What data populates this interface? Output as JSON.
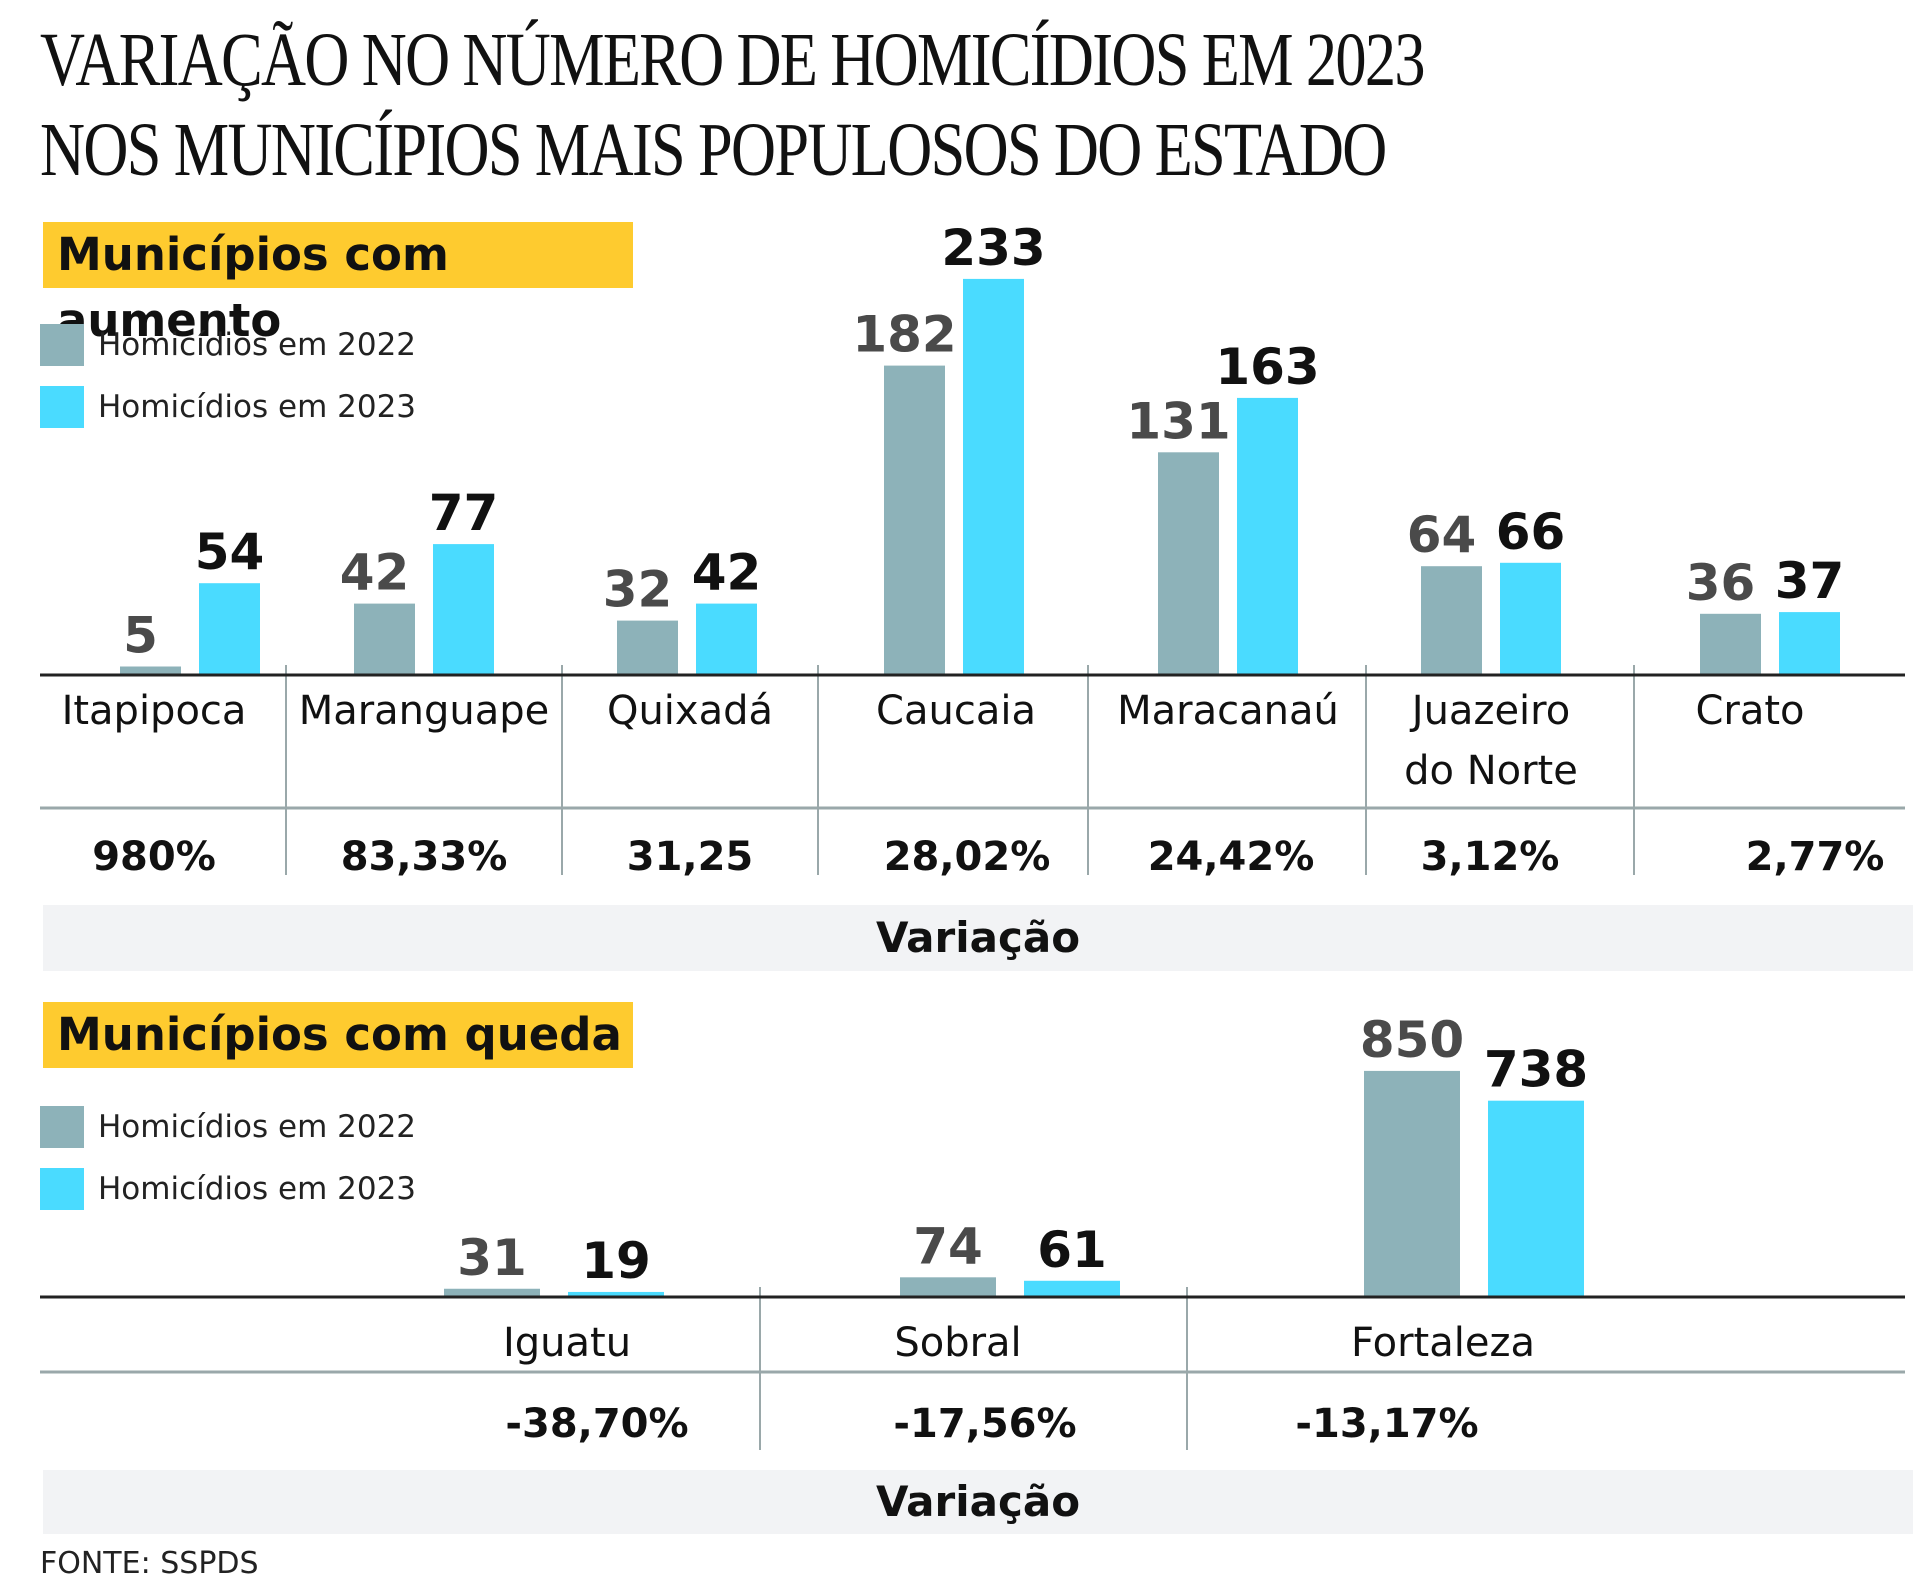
{
  "title": {
    "line1": "VARIAÇÃO NO NÚMERO DE HOMICÍDIOS EM 2023",
    "line2": "NOS MUNICÍPIOS MAIS POPULOSOS DO ESTADO"
  },
  "colors": {
    "series_2022": "#8db2b9",
    "series_2023": "#4adbff",
    "tag_background": "#fecb2f",
    "band_background": "#f2f3f5",
    "label_2022": "#4a4a4a",
    "label_2023": "#111111",
    "divider": "#9aa8aa"
  },
  "source": "FONTE: SSPDS",
  "chart_data": [
    {
      "type": "bar",
      "title": "Municípios com aumento",
      "legend": [
        "Homicídios em 2022",
        "Homicídios em 2023"
      ],
      "legend_position": "top-left",
      "categories": [
        "Itapipoca",
        "Maranguape",
        "Quixadá",
        "Caucaia",
        "Maracanaú",
        "Juazeiro do Norte",
        "Crato"
      ],
      "category_lines": [
        [
          "Itapipoca"
        ],
        [
          "Maranguape"
        ],
        [
          "Quixadá"
        ],
        [
          "Caucaia"
        ],
        [
          "Maracanaú"
        ],
        [
          "Juazeiro",
          "do Norte"
        ],
        [
          "Crato"
        ]
      ],
      "series": [
        {
          "name": "Homicídios em 2022",
          "values": [
            5,
            42,
            32,
            182,
            131,
            64,
            36
          ]
        },
        {
          "name": "Homicídios em 2023",
          "values": [
            54,
            77,
            42,
            233,
            163,
            66,
            37
          ]
        }
      ],
      "variation": [
        "980%",
        "83,33%",
        "31,25",
        "28,02%",
        "24,42%",
        "3,12%",
        "2,77%"
      ],
      "variation_label": "Variação",
      "grid": false
    },
    {
      "type": "bar",
      "title": "Municípios com queda",
      "legend": [
        "Homicídios em 2022",
        "Homicídios em 2023"
      ],
      "legend_position": "top-left",
      "categories": [
        "Iguatu",
        "Sobral",
        "Fortaleza"
      ],
      "category_lines": [
        [
          "Iguatu"
        ],
        [
          "Sobral"
        ],
        [
          "Fortaleza"
        ]
      ],
      "series": [
        {
          "name": "Homicídios em 2022",
          "values": [
            31,
            74,
            850
          ]
        },
        {
          "name": "Homicídios em 2023",
          "values": [
            19,
            61,
            738
          ]
        }
      ],
      "variation": [
        "-38,70%",
        "-17,56%",
        "-13,17%"
      ],
      "variation_label": "Variação",
      "grid": false
    }
  ]
}
